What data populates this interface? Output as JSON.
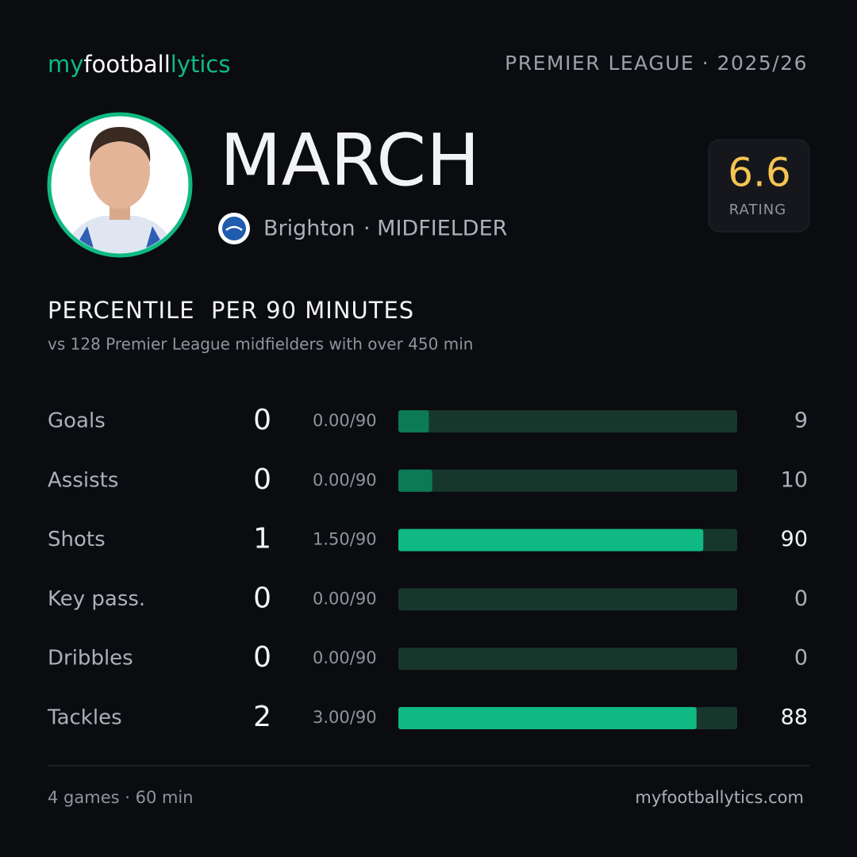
{
  "header": {
    "logo": [
      "my",
      "football",
      "lytics"
    ],
    "competition": "PREMIER LEAGUE · 2025/26"
  },
  "player": {
    "name": "MARCH",
    "club": "Brighton",
    "position": "· MIDFIELDER",
    "rating": "6.6",
    "rating_label": "RATING"
  },
  "section": {
    "title": "PERCENTILE  PER 90 MINUTES",
    "subtitle": "vs 128 Premier League midfielders with over 450 min"
  },
  "stats": {
    "xlim": [
      0,
      100
    ],
    "track_color": "#17372d",
    "rows": [
      {
        "label": "Goals",
        "count": 0,
        "per90": "0.00/90",
        "percentile": 9,
        "color": "#0b7a55"
      },
      {
        "label": "Assists",
        "count": 0,
        "per90": "0.00/90",
        "percentile": 10,
        "color": "#0b7a55"
      },
      {
        "label": "Shots",
        "count": 1,
        "per90": "1.50/90",
        "percentile": 90,
        "color": "#10b981"
      },
      {
        "label": "Key pass.",
        "count": 0,
        "per90": "0.00/90",
        "percentile": 0,
        "color": "#0b7a55"
      },
      {
        "label": "Dribbles",
        "count": 0,
        "per90": "0.00/90",
        "percentile": 0,
        "color": "#0b7a55"
      },
      {
        "label": "Tackles",
        "count": 2,
        "per90": "3.00/90",
        "percentile": 88,
        "color": "#10b981"
      }
    ]
  },
  "footer": {
    "summary": "4 games · 60 min",
    "site": "myfootballytics.com"
  }
}
